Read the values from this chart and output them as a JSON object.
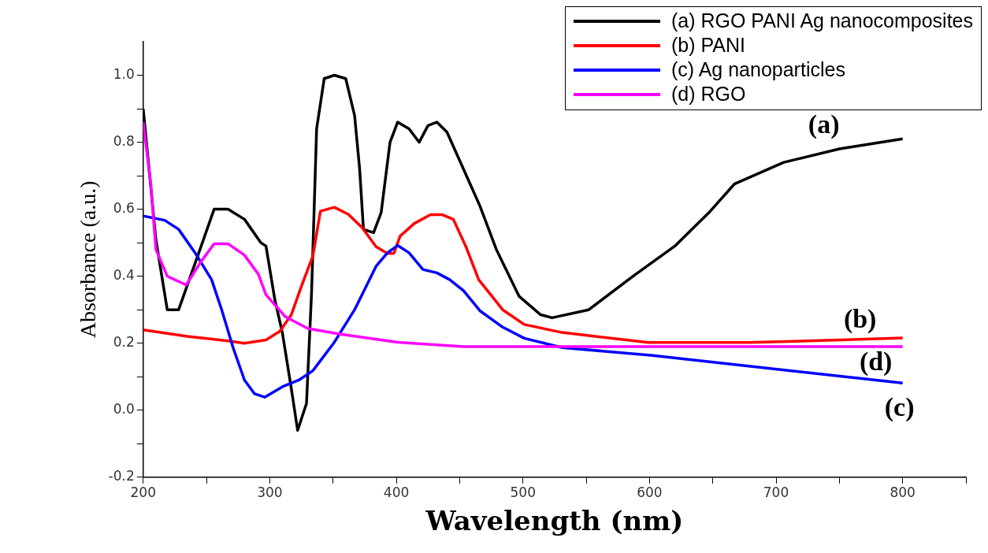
{
  "chart_data": {
    "type": "line",
    "xlabel": "Wavelength (nm)",
    "ylabel": "Absorbance (a.u.)",
    "xlim": [
      200,
      850
    ],
    "ylim": [
      -0.2,
      1.1
    ],
    "xticks": [
      200,
      {
        "value": 250,
        "label": null
      },
      300,
      {
        "value": 350,
        "label": null
      },
      400,
      {
        "value": 450,
        "label": null
      },
      500,
      {
        "value": 550,
        "label": null
      },
      600,
      {
        "value": 650,
        "label": null
      },
      700,
      {
        "value": 750,
        "label": null
      },
      800,
      {
        "value": 850,
        "label": null
      }
    ],
    "yticks": [
      -0.2,
      {
        "value": -0.1,
        "label": null
      },
      {
        "value": 0,
        "label": "0.0"
      },
      {
        "value": 0.1,
        "label": null
      },
      0.2,
      {
        "value": 0.3,
        "label": null
      },
      0.4,
      {
        "value": 0.5,
        "label": null
      },
      0.6,
      {
        "value": 0.7,
        "label": null
      },
      0.8,
      {
        "value": 0.9,
        "label": null
      },
      {
        "value": 1,
        "label": "1.0"
      }
    ],
    "grid": false,
    "legend": "top right",
    "marker": "none",
    "line_style": "solid",
    "series": [
      {
        "name": "(a) RGO PANI Ag nanocomposites",
        "color": "#000000",
        "x": [
          200,
          210,
          219,
          228,
          243,
          256,
          267,
          280,
          293,
          297,
          304,
          310,
          317,
          322,
          329,
          333,
          337,
          343,
          351,
          360,
          367,
          371,
          374,
          382,
          388,
          395,
          401,
          410,
          418,
          425,
          432,
          440,
          453,
          466,
          479,
          497,
          514,
          523,
          552,
          587,
          620,
          647,
          667,
          706,
          750,
          800
        ],
        "values": [
          0.9,
          0.51,
          0.3,
          0.3,
          0.46,
          0.6,
          0.6,
          0.57,
          0.5,
          0.49,
          0.33,
          0.23,
          0.065,
          -0.06,
          0.02,
          0.35,
          0.84,
          0.99,
          1.0,
          0.99,
          0.88,
          0.72,
          0.54,
          0.53,
          0.59,
          0.8,
          0.86,
          0.84,
          0.8,
          0.85,
          0.86,
          0.83,
          0.72,
          0.61,
          0.48,
          0.34,
          0.285,
          0.276,
          0.3,
          0.4,
          0.49,
          0.59,
          0.675,
          0.74,
          0.78,
          0.81
        ]
      },
      {
        "name": "(b) PANI",
        "color": "#ff0000",
        "x": [
          200,
          236,
          267,
          280,
          297,
          308,
          317,
          325,
          334,
          340,
          351,
          362,
          373,
          384,
          393,
          398,
          403,
          414,
          427,
          436,
          445,
          455,
          465,
          484,
          501,
          531,
          599,
          679,
          751,
          800
        ],
        "values": [
          0.24,
          0.22,
          0.207,
          0.2,
          0.21,
          0.236,
          0.285,
          0.37,
          0.46,
          0.594,
          0.606,
          0.585,
          0.545,
          0.488,
          0.468,
          0.468,
          0.52,
          0.557,
          0.584,
          0.584,
          0.57,
          0.488,
          0.39,
          0.3,
          0.256,
          0.232,
          0.202,
          0.202,
          0.21,
          0.216
        ]
      },
      {
        "name": "(c) Ag nanoparticles",
        "color": "#0000ff",
        "x": [
          200,
          217,
          228,
          241,
          254,
          262,
          271,
          280,
          288,
          296,
          310,
          323,
          334,
          351,
          367,
          384,
          393,
          401,
          410,
          421,
          432,
          442,
          453,
          466,
          484,
          501,
          531,
          601,
          800
        ],
        "values": [
          0.58,
          0.567,
          0.54,
          0.47,
          0.39,
          0.3,
          0.187,
          0.09,
          0.049,
          0.039,
          0.07,
          0.09,
          0.118,
          0.203,
          0.3,
          0.43,
          0.47,
          0.492,
          0.47,
          0.42,
          0.41,
          0.39,
          0.357,
          0.297,
          0.248,
          0.215,
          0.187,
          0.164,
          0.081
        ]
      },
      {
        "name": "(d) RGO",
        "color": "#ff00ff",
        "x": [
          200,
          206,
          210,
          219,
          234,
          245,
          256,
          267,
          280,
          291,
          297,
          312,
          330,
          356,
          401,
          453,
          600,
          800
        ],
        "values": [
          0.86,
          0.675,
          0.48,
          0.4,
          0.374,
          0.44,
          0.497,
          0.497,
          0.463,
          0.406,
          0.345,
          0.28,
          0.244,
          0.227,
          0.203,
          0.19,
          0.19,
          0.19
        ]
      }
    ],
    "annotations": [
      "(a)",
      "(b)",
      "(c)",
      "(d)"
    ]
  }
}
